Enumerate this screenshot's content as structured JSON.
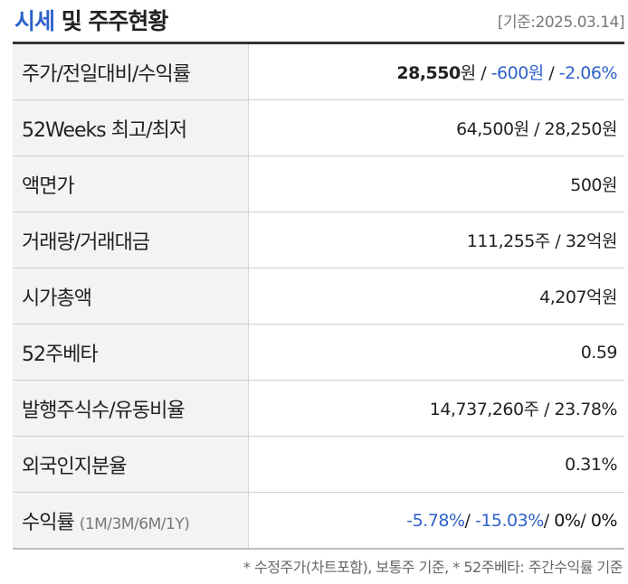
{
  "header": {
    "title_accent": "시세",
    "title_rest": " 및 주주현황",
    "as_of": "[기준:2025.03.14]"
  },
  "rows": {
    "price": {
      "label": "주가/전일대비/수익률",
      "price": "28,550",
      "won1": "원",
      "sep1": " / ",
      "change": "-600원",
      "sep2": " / ",
      "rate": "-2.06%"
    },
    "weeks52": {
      "label": "52Weeks 최고/최저",
      "value": "64,500원 / 28,250원"
    },
    "par": {
      "label": "액면가",
      "value": "500원"
    },
    "volume": {
      "label": "거래량/거래대금",
      "value": "111,255주 / 32억원"
    },
    "mcap": {
      "label": "시가총액",
      "value": "4,207억원"
    },
    "beta": {
      "label": "52주베타",
      "value": "0.59"
    },
    "shares": {
      "label": "발행주식수/유동비율",
      "value": "14,737,260주 / 23.78%"
    },
    "foreign": {
      "label": "외국인지분율",
      "value": "0.31%"
    },
    "returns": {
      "label": "수익률",
      "sub": "(1M/3M/6M/1Y)",
      "r1m": "-5.78%",
      "sep1": "/ ",
      "r3m": "-15.03%",
      "sep2": "/ ",
      "r6m": "0%",
      "sep3": "/ ",
      "r1y": "0%"
    }
  },
  "footnote": "* 수정주가(차트포함), 보통주 기준, * 52주베타: 주간수익률 기준",
  "colors": {
    "accent": "#2f62c9",
    "label_bg": "#f3f3f3"
  }
}
